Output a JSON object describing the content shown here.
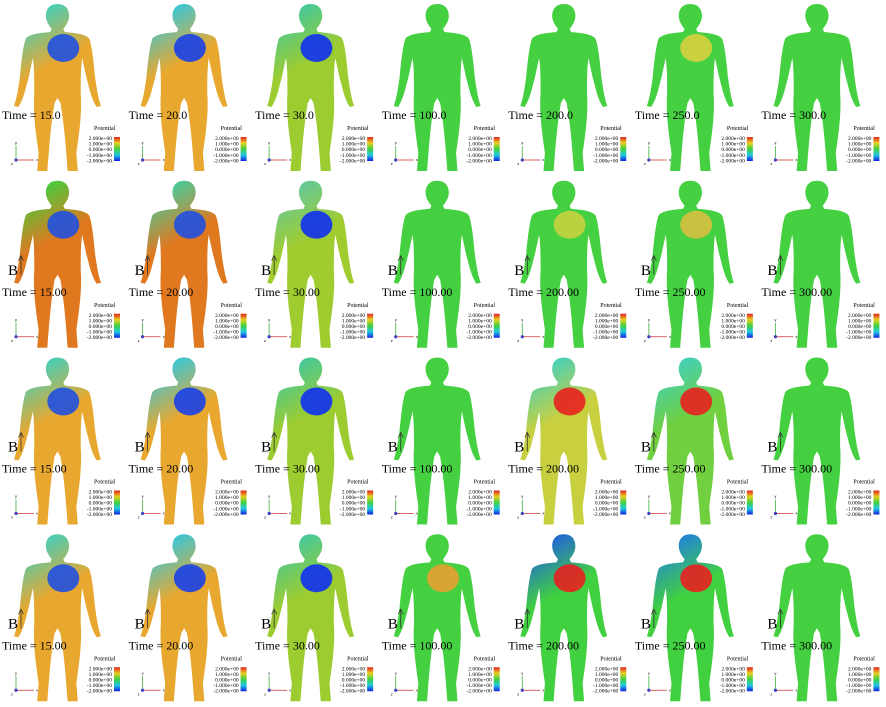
{
  "rows": [
    [
      {
        "time": "Time = 15.0",
        "legend_title": "Potential",
        "legend_labels": [
          "2.000e+00",
          "1.000e+00",
          "0.000e+00",
          "-1.000e+00",
          "-2.000e+00"
        ],
        "axis_labels": [
          "y",
          "x",
          "z"
        ],
        "top": "#3cd0c0",
        "bottom": "#e8a830",
        "blob": "#2050e0"
      },
      {
        "time": "Time = 20.0",
        "legend_title": "Potential",
        "legend_labels": [
          "2.000e+00",
          "1.000e+00",
          "0.000e+00",
          "-1.000e+00",
          "-2.000e+00"
        ],
        "axis_labels": [
          "y",
          "x",
          "z"
        ],
        "top": "#30c8e0",
        "bottom": "#e8a830",
        "blob": "#1a40e8"
      },
      {
        "time": "Time = 30.0",
        "legend_title": "Potential",
        "legend_labels": [
          "2.000e+00",
          "1.000e+00",
          "0.000e+00",
          "-1.000e+00",
          "-2.000e+00"
        ],
        "axis_labels": [
          "y",
          "x",
          "z"
        ],
        "top": "#40c8a0",
        "bottom": "#9ccc30",
        "blob": "#1030f0"
      },
      {
        "time": "Time = 100.0",
        "legend_title": "Potential",
        "legend_labels": [
          "2.000e+00",
          "1.000e+00",
          "0.000e+00",
          "-1.000e+00",
          "-2.000e+00"
        ],
        "axis_labels": [
          "y",
          "x",
          "z"
        ],
        "top": "#44d040",
        "bottom": "#44d040"
      },
      {
        "time": "Time = 200.0",
        "legend_title": "Potential",
        "legend_labels": [
          "2.000e+00",
          "1.000e+00",
          "0.000e+00",
          "-1.000e+00",
          "-2.000e+00"
        ],
        "axis_labels": [
          "y",
          "x",
          "z"
        ],
        "top": "#44d040",
        "bottom": "#44d040"
      },
      {
        "time": "Time = 250.0",
        "legend_title": "Potential",
        "legend_labels": [
          "2.000e+00",
          "1.000e+00",
          "0.000e+00",
          "-1.000e+00",
          "-2.000e+00"
        ],
        "axis_labels": [
          "y",
          "x",
          "z"
        ],
        "top": "#44d040",
        "bottom": "#44d040",
        "blob": "#d8d040"
      },
      {
        "time": "Time = 300.0",
        "legend_title": "Potential",
        "legend_labels": [
          "2.000e+00",
          "1.000e+00",
          "0.000e+00",
          "-1.000e+00",
          "-2.000e+00"
        ],
        "axis_labels": [
          "y",
          "x",
          "z"
        ],
        "top": "#44d040",
        "bottom": "#44d040"
      }
    ],
    [
      {
        "time": "Time = 15.00",
        "b": "B",
        "legend_title": "Potential",
        "legend_labels": [
          "2.000e+00",
          "1.000e+00",
          "0.000e+00",
          "-1.000e+00",
          "-2.000e+00"
        ],
        "axis_labels": [
          "y",
          "x",
          "z"
        ],
        "top": "#40d040",
        "bottom": "#e07820",
        "blob": "#2050e0"
      },
      {
        "time": "Time = 20.00",
        "b": "B",
        "legend_title": "Potential",
        "legend_labels": [
          "2.000e+00",
          "1.000e+00",
          "0.000e+00",
          "-1.000e+00",
          "-2.000e+00"
        ],
        "axis_labels": [
          "y",
          "x",
          "z"
        ],
        "top": "#40d0a0",
        "bottom": "#e07820",
        "blob": "#2050e0"
      },
      {
        "time": "Time = 30.00",
        "b": "B",
        "legend_title": "Potential",
        "legend_labels": [
          "2.000e+00",
          "1.000e+00",
          "0.000e+00",
          "-1.000e+00",
          "-2.000e+00"
        ],
        "axis_labels": [
          "y",
          "x",
          "z"
        ],
        "top": "#60c8a0",
        "bottom": "#a0cc30",
        "blob": "#1030f0"
      },
      {
        "time": "Time = 100.00",
        "b": "B",
        "legend_title": "Potential",
        "legend_labels": [
          "2.000e+00",
          "1.000e+00",
          "0.000e+00",
          "-1.000e+00",
          "-2.000e+00"
        ],
        "axis_labels": [
          "y",
          "x",
          "z"
        ],
        "top": "#44d040",
        "bottom": "#44d040"
      },
      {
        "time": "Time = 200.00",
        "b": "B",
        "legend_title": "Potential",
        "legend_labels": [
          "2.000e+00",
          "1.000e+00",
          "0.000e+00",
          "-1.000e+00",
          "-2.000e+00"
        ],
        "axis_labels": [
          "y",
          "x",
          "z"
        ],
        "top": "#44d040",
        "bottom": "#44d040",
        "blob": "#c8d040"
      },
      {
        "time": "Time = 250.00",
        "b": "B",
        "legend_title": "Potential",
        "legend_labels": [
          "2.000e+00",
          "1.000e+00",
          "0.000e+00",
          "-1.000e+00",
          "-2.000e+00"
        ],
        "axis_labels": [
          "y",
          "x",
          "z"
        ],
        "top": "#44d040",
        "bottom": "#44d040",
        "blob": "#d8c040"
      },
      {
        "time": "Time = 300.00",
        "b": "B",
        "legend_title": "Potential",
        "legend_labels": [
          "2.000e+00",
          "1.000e+00",
          "0.000e+00",
          "-1.000e+00",
          "-2.000e+00"
        ],
        "axis_labels": [
          "y",
          "x",
          "z"
        ],
        "top": "#44d040",
        "bottom": "#44d040"
      }
    ],
    [
      {
        "time": "Time = 15.00",
        "b": "B",
        "legend_title": "Potential",
        "legend_labels": [
          "2.000e+00",
          "1.000e+00",
          "0.000e+00",
          "-1.000e+00",
          "-2.000e+00"
        ],
        "axis_labels": [
          "y",
          "x",
          "z"
        ],
        "top": "#3cd0c0",
        "bottom": "#e8a830",
        "blob": "#2050e0"
      },
      {
        "time": "Time = 20.00",
        "b": "B",
        "legend_title": "Potential",
        "legend_labels": [
          "2.000e+00",
          "1.000e+00",
          "0.000e+00",
          "-1.000e+00",
          "-2.000e+00"
        ],
        "axis_labels": [
          "y",
          "x",
          "z"
        ],
        "top": "#30c8e0",
        "bottom": "#e8a830",
        "blob": "#1a40e8"
      },
      {
        "time": "Time = 30.00",
        "b": "B",
        "legend_title": "Potential",
        "legend_labels": [
          "2.000e+00",
          "1.000e+00",
          "0.000e+00",
          "-1.000e+00",
          "-2.000e+00"
        ],
        "axis_labels": [
          "y",
          "x",
          "z"
        ],
        "top": "#40c8a0",
        "bottom": "#9ccc30",
        "blob": "#1030f0"
      },
      {
        "time": "Time = 100.00",
        "b": "B",
        "legend_title": "Potential",
        "legend_labels": [
          "2.000e+00",
          "1.000e+00",
          "0.000e+00",
          "-1.000e+00",
          "-2.000e+00"
        ],
        "axis_labels": [
          "y",
          "x",
          "z"
        ],
        "top": "#44d040",
        "bottom": "#44d040"
      },
      {
        "time": "Time = 200.00",
        "b": "B",
        "legend_title": "Potential",
        "legend_labels": [
          "2.000e+00",
          "1.000e+00",
          "0.000e+00",
          "-1.000e+00",
          "-2.000e+00"
        ],
        "axis_labels": [
          "y",
          "x",
          "z"
        ],
        "top": "#40d0c0",
        "bottom": "#c8d040",
        "blob": "#e82020"
      },
      {
        "time": "Time = 250.00",
        "b": "B",
        "legend_title": "Potential",
        "legend_labels": [
          "2.000e+00",
          "1.000e+00",
          "0.000e+00",
          "-1.000e+00",
          "-2.000e+00"
        ],
        "axis_labels": [
          "y",
          "x",
          "z"
        ],
        "top": "#40d0c0",
        "bottom": "#70d040",
        "blob": "#e82020"
      },
      {
        "time": "Time = 300.00",
        "b": "B",
        "legend_title": "Potential",
        "legend_labels": [
          "2.000e+00",
          "1.000e+00",
          "0.000e+00",
          "-1.000e+00",
          "-2.000e+00"
        ],
        "axis_labels": [
          "y",
          "x",
          "z"
        ],
        "top": "#44d040",
        "bottom": "#44d040"
      }
    ],
    [
      {
        "time": "Time = 15.00",
        "b": "B",
        "legend_title": "Potential",
        "legend_labels": [
          "2.000e+00",
          "1.000e+00",
          "0.000e+00",
          "-1.000e+00",
          "-2.000e+00"
        ],
        "axis_labels": [
          "y",
          "x",
          "z"
        ],
        "top": "#3cd0c0",
        "bottom": "#e8a830",
        "blob": "#2050e0"
      },
      {
        "time": "Time = 20.00",
        "b": "B",
        "legend_title": "Potential",
        "legend_labels": [
          "2.000e+00",
          "1.000e+00",
          "0.000e+00",
          "-1.000e+00",
          "-2.000e+00"
        ],
        "axis_labels": [
          "y",
          "x",
          "z"
        ],
        "top": "#30c8e0",
        "bottom": "#e8a830",
        "blob": "#1a40e8"
      },
      {
        "time": "Time = 30.00",
        "b": "B",
        "legend_title": "Potential",
        "legend_labels": [
          "2.000e+00",
          "1.000e+00",
          "0.000e+00",
          "-1.000e+00",
          "-2.000e+00"
        ],
        "axis_labels": [
          "y",
          "x",
          "z"
        ],
        "top": "#40c8a0",
        "bottom": "#9ccc30",
        "blob": "#1030f0"
      },
      {
        "time": "Time = 100.00",
        "b": "B",
        "legend_title": "Potential",
        "legend_labels": [
          "2.000e+00",
          "1.000e+00",
          "0.000e+00",
          "-1.000e+00",
          "-2.000e+00"
        ],
        "axis_labels": [
          "y",
          "x",
          "z"
        ],
        "top": "#44d040",
        "bottom": "#44d040",
        "blob": "#e8a030"
      },
      {
        "time": "Time = 200.00",
        "b": "B",
        "legend_title": "Potential",
        "legend_labels": [
          "2.000e+00",
          "1.000e+00",
          "0.000e+00",
          "-1.000e+00",
          "-2.000e+00"
        ],
        "axis_labels": [
          "y",
          "x",
          "z"
        ],
        "top": "#2060e0",
        "bottom": "#40d040",
        "blob": "#e82020"
      },
      {
        "time": "Time = 250.00",
        "b": "B",
        "legend_title": "Potential",
        "legend_labels": [
          "2.000e+00",
          "1.000e+00",
          "0.000e+00",
          "-1.000e+00",
          "-2.000e+00"
        ],
        "axis_labels": [
          "y",
          "x",
          "z"
        ],
        "top": "#2080e0",
        "bottom": "#40d040",
        "blob": "#e82020"
      },
      {
        "time": "Time = 300.00",
        "b": "B",
        "legend_title": "Potential",
        "legend_labels": [
          "2.000e+00",
          "1.000e+00",
          "0.000e+00",
          "-1.000e+00",
          "-2.000e+00"
        ],
        "axis_labels": [
          "y",
          "x",
          "z"
        ],
        "top": "#44d040",
        "bottom": "#44d040"
      }
    ]
  ]
}
